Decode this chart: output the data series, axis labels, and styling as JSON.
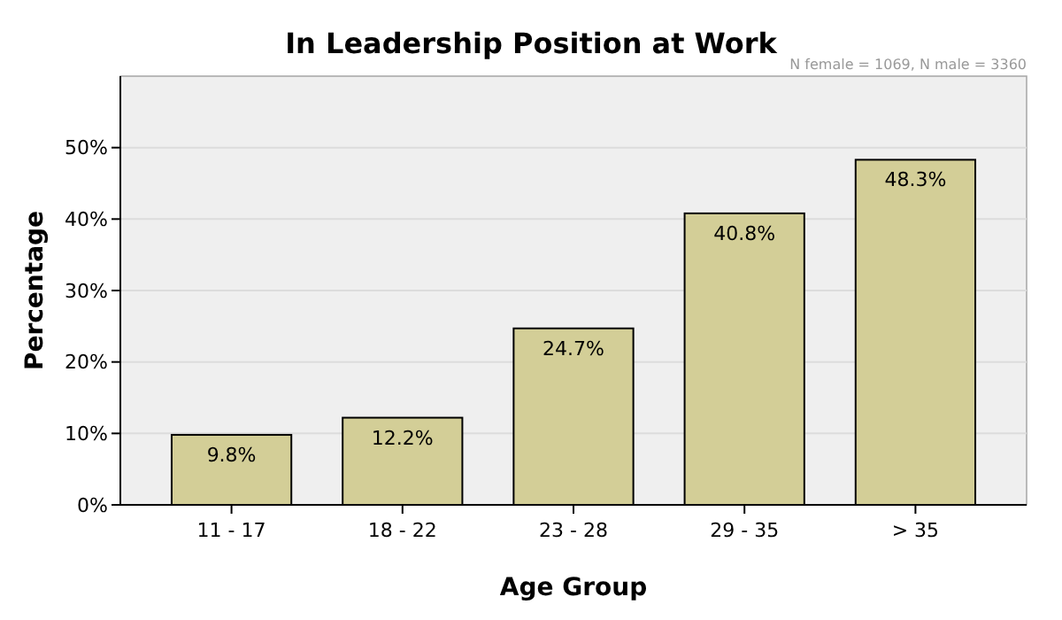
{
  "chart_data": {
    "type": "bar",
    "title": "In Leadership Position at Work",
    "xlabel": "Age Group",
    "ylabel": "Percentage",
    "annotations": [
      "N female = 1069, N male = 3360"
    ],
    "categories": [
      "11 - 17",
      "18 - 22",
      "23 - 28",
      "29 - 35",
      "> 35"
    ],
    "values": [
      9.8,
      12.2,
      24.7,
      40.8,
      48.3
    ],
    "value_labels": [
      "9.8%",
      "12.2%",
      "24.7%",
      "40.8%",
      "48.3%"
    ],
    "color": "#d3ce97",
    "ylim": [
      0,
      60
    ],
    "yticks": [
      {
        "value": 0,
        "label": "0%"
      },
      {
        "value": 10,
        "label": "10%"
      },
      {
        "value": 20,
        "label": "20%"
      },
      {
        "value": 30,
        "label": "30%"
      },
      {
        "value": 40,
        "label": "40%"
      },
      {
        "value": 50,
        "label": "50%"
      }
    ],
    "grid": "y"
  }
}
